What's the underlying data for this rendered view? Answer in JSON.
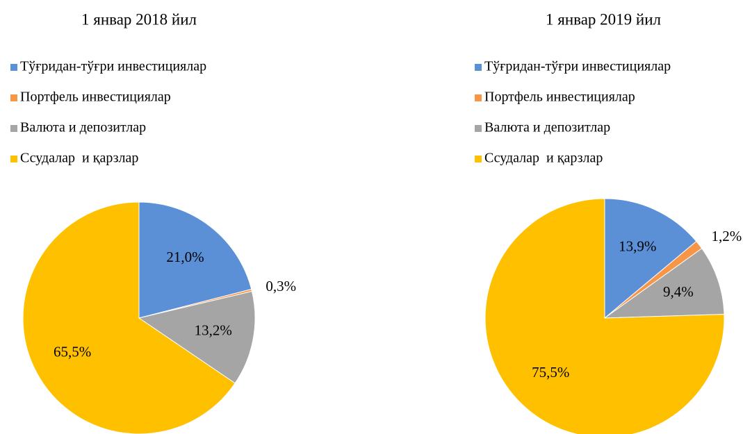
{
  "chart_data": [
    {
      "type": "pie",
      "title": "1 январ 2018 йил",
      "categories": [
        "Тўғридан-тўғри инвестициялар",
        "Портфель инвестициялар",
        "Валюта и депозитлар",
        "Ссудалар  и қарзлар"
      ],
      "values": [
        21.0,
        0.3,
        13.2,
        65.5
      ],
      "value_labels": [
        "21,0%",
        "0,3%",
        "13,2%",
        "65,5%"
      ],
      "colors": [
        "#5b8fd6",
        "#f79646",
        "#a5a5a5",
        "#ffc000"
      ],
      "legend": "top-left"
    },
    {
      "type": "pie",
      "title": "1 январ 2019 йил",
      "categories": [
        "Тўғридан-тўғри инвестициялар",
        "Портфель инвестициялар",
        "Валюта и депозитлар",
        "Ссудалар  и қарзлар"
      ],
      "values": [
        13.9,
        1.2,
        9.4,
        75.5
      ],
      "value_labels": [
        "13,9%",
        "1,2%",
        "9,4%",
        "75,5%"
      ],
      "colors": [
        "#5b8fd6",
        "#f79646",
        "#a5a5a5",
        "#ffc000"
      ],
      "legend": "top-left"
    }
  ]
}
